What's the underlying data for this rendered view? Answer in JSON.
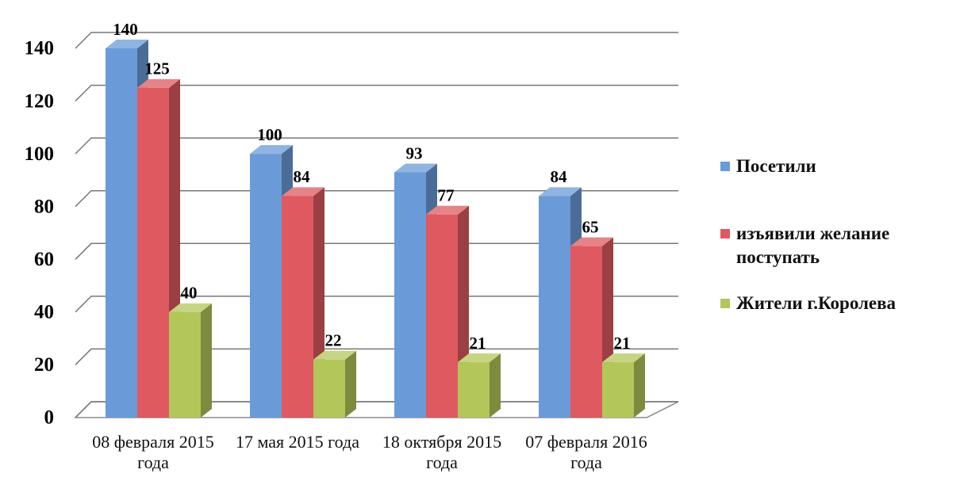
{
  "chart_data": {
    "type": "bar3d",
    "categories": [
      "08 февраля 2015 года",
      "17 мая 2015 года",
      "18 октября 2015 года",
      "07 февраля 2016 года"
    ],
    "series": [
      {
        "name": "Посетили",
        "color": "#6a9bd8",
        "values": [
          140,
          100,
          93,
          84
        ]
      },
      {
        "name": "изъявили желание поступать",
        "color": "#de5a60",
        "values": [
          125,
          84,
          77,
          65
        ]
      },
      {
        "name": "Жители г.Королева",
        "color": "#b3c65a",
        "values": [
          40,
          22,
          21,
          21
        ]
      }
    ],
    "ylim": [
      0,
      140
    ],
    "yticks": [
      0,
      20,
      40,
      60,
      80,
      100,
      120,
      140
    ],
    "grid": true,
    "legend": "right"
  }
}
